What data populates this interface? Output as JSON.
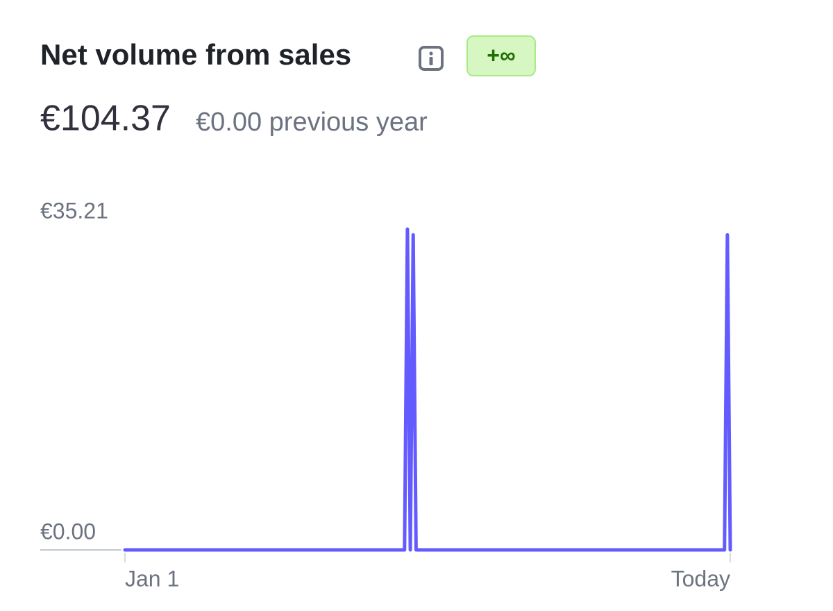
{
  "header": {
    "title": "Net volume from sales",
    "badge": "+∞"
  },
  "summary": {
    "value": "€104.37",
    "comparison": "€0.00 previous year"
  },
  "chart_data": {
    "type": "line",
    "x": [
      0,
      97,
      98,
      99,
      100,
      101,
      208,
      209,
      210
    ],
    "values": [
      0,
      0,
      35.21,
      0,
      34.58,
      0,
      0,
      34.58,
      0
    ],
    "color": "#635bff",
    "xlim": [
      0,
      210
    ],
    "xticks": [
      {
        "value": 0,
        "label": "Jan 1"
      },
      {
        "value": 210,
        "label": "Today"
      }
    ],
    "ylim": [
      0,
      35.21
    ],
    "yticks": [
      {
        "value": 0,
        "label": "€0.00"
      },
      {
        "value": 35.21,
        "label": "€35.21"
      }
    ]
  }
}
